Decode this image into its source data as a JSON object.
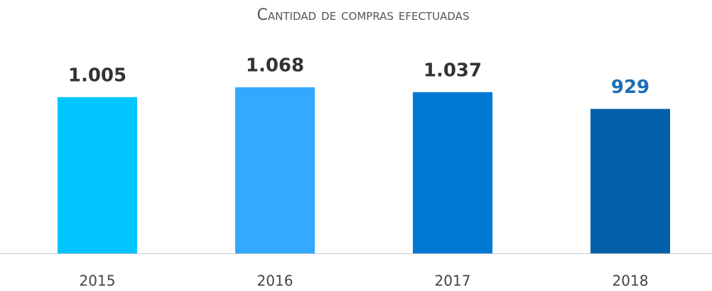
{
  "chart_data": {
    "type": "bar",
    "title": "Cantidad de compras efectuadas",
    "categories": [
      "2015",
      "2016",
      "2017",
      "2018"
    ],
    "values": [
      1005,
      1068,
      1037,
      929
    ],
    "value_labels": [
      "1.005",
      "1.068",
      "1.037",
      "929"
    ],
    "colors": [
      "#00c5ff",
      "#33a9ff",
      "#0078d4",
      "#005fa8"
    ],
    "label_colors": [
      "#333333",
      "#333333",
      "#333333",
      "#1b6fb5"
    ]
  }
}
